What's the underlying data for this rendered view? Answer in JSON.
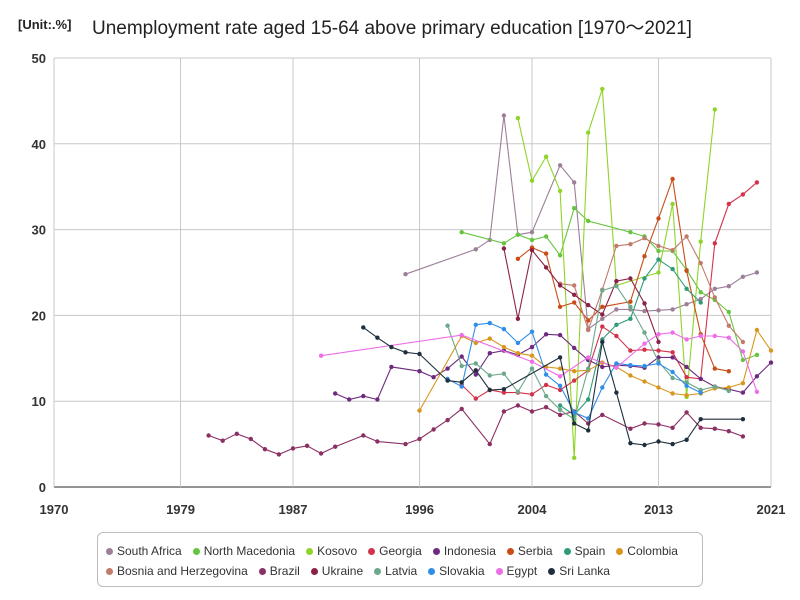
{
  "chart_data": {
    "type": "line",
    "title": "Unemployment rate aged 15-64 above primary education [1970～2021]",
    "unit_label": "[Unit:.%]",
    "xlabel": "",
    "ylabel": "",
    "xlim": [
      1970,
      2021
    ],
    "ylim": [
      0,
      50
    ],
    "x_ticks": [
      "1970",
      "1979",
      "1987",
      "1996",
      "2004",
      "2013",
      "2021"
    ],
    "y_ticks": [
      "0",
      "10",
      "20",
      "30",
      "40",
      "50"
    ],
    "grid": true,
    "legend_position": "bottom",
    "series": [
      {
        "name": "South Africa",
        "color": "#9c7f98",
        "points": [
          [
            1995,
            24.8
          ],
          [
            2000,
            27.7
          ],
          [
            2001,
            28.8
          ],
          [
            2002,
            43.3
          ],
          [
            2003,
            29.4
          ],
          [
            2004,
            29.7
          ],
          [
            2006,
            37.5
          ],
          [
            2007,
            35.5
          ],
          [
            2008,
            18.4
          ],
          [
            2009,
            19.6
          ],
          [
            2010,
            20.7
          ],
          [
            2011,
            20.7
          ],
          [
            2012,
            20.5
          ],
          [
            2013,
            20.6
          ],
          [
            2014,
            20.7
          ],
          [
            2015,
            21.3
          ],
          [
            2016,
            21.9
          ],
          [
            2017,
            23.1
          ],
          [
            2018,
            23.4
          ],
          [
            2019,
            24.5
          ],
          [
            2020,
            25.0
          ]
        ]
      },
      {
        "name": "North Macedonia",
        "color": "#66c43e",
        "points": [
          [
            1999,
            29.7
          ],
          [
            2002,
            28.4
          ],
          [
            2003,
            29.4
          ],
          [
            2004,
            28.8
          ],
          [
            2005,
            29.2
          ],
          [
            2006,
            27.0
          ],
          [
            2007,
            32.5
          ],
          [
            2008,
            31.0
          ],
          [
            2011,
            29.7
          ],
          [
            2012,
            29.2
          ],
          [
            2013,
            27.5
          ],
          [
            2014,
            27.5
          ],
          [
            2015,
            25.3
          ],
          [
            2016,
            22.7
          ],
          [
            2017,
            21.8
          ],
          [
            2018,
            20.4
          ],
          [
            2019,
            14.8
          ],
          [
            2020,
            15.4
          ]
        ]
      },
      {
        "name": "Kosovo",
        "color": "#8fd428",
        "points": [
          [
            2003,
            43.0
          ],
          [
            2004,
            35.7
          ],
          [
            2005,
            38.5
          ],
          [
            2006,
            34.5
          ],
          [
            2007,
            3.4
          ],
          [
            2008,
            41.3
          ],
          [
            2009,
            46.4
          ],
          [
            2010,
            23.5
          ],
          [
            2013,
            25.0
          ],
          [
            2014,
            33.0
          ],
          [
            2015,
            10.5
          ],
          [
            2016,
            28.6
          ],
          [
            2017,
            44.0
          ]
        ]
      },
      {
        "name": "Georgia",
        "color": "#d4324a",
        "points": [
          [
            1999,
            11.9
          ],
          [
            2000,
            10.3
          ],
          [
            2001,
            11.3
          ],
          [
            2002,
            11.0
          ],
          [
            2003,
            11.0
          ],
          [
            2004,
            10.8
          ],
          [
            2005,
            11.9
          ],
          [
            2006,
            11.3
          ],
          [
            2007,
            12.4
          ],
          [
            2008,
            13.6
          ],
          [
            2009,
            18.7
          ],
          [
            2010,
            17.6
          ],
          [
            2011,
            15.9
          ],
          [
            2012,
            16.0
          ],
          [
            2013,
            15.9
          ],
          [
            2014,
            15.7
          ],
          [
            2015,
            12.8
          ],
          [
            2016,
            12.6
          ],
          [
            2017,
            28.4
          ],
          [
            2018,
            33.0
          ],
          [
            2019,
            34.1
          ],
          [
            2020,
            35.5
          ]
        ]
      },
      {
        "name": "Indonesia",
        "color": "#6e2a7e",
        "points": [
          [
            1990,
            10.9
          ],
          [
            1991,
            10.2
          ],
          [
            1992,
            10.6
          ],
          [
            1993,
            10.2
          ],
          [
            1994,
            14.0
          ],
          [
            1996,
            13.5
          ],
          [
            1997,
            12.8
          ],
          [
            1998,
            13.8
          ],
          [
            1999,
            15.2
          ],
          [
            2000,
            13.1
          ],
          [
            2001,
            15.6
          ],
          [
            2002,
            15.9
          ],
          [
            2003,
            15.4
          ],
          [
            2004,
            16.3
          ],
          [
            2005,
            17.8
          ],
          [
            2006,
            17.7
          ],
          [
            2007,
            16.2
          ],
          [
            2008,
            14.8
          ],
          [
            2009,
            14.0
          ],
          [
            2010,
            14.2
          ],
          [
            2011,
            14.1
          ],
          [
            2012,
            13.9
          ],
          [
            2013,
            15.1
          ],
          [
            2014,
            15.1
          ],
          [
            2015,
            14.0
          ],
          [
            2016,
            12.6
          ],
          [
            2017,
            11.7
          ],
          [
            2018,
            11.4
          ],
          [
            2019,
            11.0
          ],
          [
            2020,
            12.9
          ],
          [
            2021,
            14.5
          ]
        ]
      },
      {
        "name": "Serbia",
        "color": "#c94d19",
        "points": [
          [
            2003,
            26.6
          ],
          [
            2004,
            27.9
          ],
          [
            2005,
            27.2
          ],
          [
            2006,
            21.0
          ],
          [
            2007,
            21.5
          ],
          [
            2008,
            19.4
          ],
          [
            2009,
            21.0
          ],
          [
            2011,
            21.6
          ],
          [
            2012,
            26.9
          ],
          [
            2013,
            31.3
          ],
          [
            2014,
            35.9
          ],
          [
            2015,
            25.2
          ],
          [
            2016,
            17.8
          ],
          [
            2017,
            13.8
          ],
          [
            2018,
            13.5
          ]
        ]
      },
      {
        "name": "Spain",
        "color": "#2f9b77",
        "points": [
          [
            2006,
            9.5
          ],
          [
            2007,
            8.4
          ],
          [
            2008,
            10.2
          ],
          [
            2009,
            17.2
          ],
          [
            2010,
            18.9
          ],
          [
            2011,
            19.6
          ],
          [
            2012,
            24.3
          ],
          [
            2013,
            26.5
          ],
          [
            2014,
            25.4
          ],
          [
            2015,
            23.1
          ],
          [
            2016,
            21.5
          ]
        ]
      },
      {
        "name": "Colombia",
        "color": "#d8971e",
        "points": [
          [
            1996,
            8.9
          ],
          [
            1999,
            17.6
          ],
          [
            2000,
            16.8
          ],
          [
            2001,
            17.3
          ],
          [
            2002,
            16.3
          ],
          [
            2003,
            15.6
          ],
          [
            2004,
            15.3
          ],
          [
            2005,
            14.0
          ],
          [
            2006,
            13.8
          ],
          [
            2007,
            13.5
          ],
          [
            2008,
            13.6
          ],
          [
            2009,
            14.5
          ],
          [
            2010,
            14.0
          ],
          [
            2011,
            13.0
          ],
          [
            2012,
            12.3
          ],
          [
            2013,
            11.6
          ],
          [
            2014,
            10.9
          ],
          [
            2015,
            10.7
          ],
          [
            2016,
            10.9
          ],
          [
            2017,
            11.5
          ],
          [
            2018,
            11.6
          ],
          [
            2019,
            12.1
          ],
          [
            2020,
            18.3
          ],
          [
            2021,
            15.9
          ]
        ]
      },
      {
        "name": "Bosnia and Herzegovina",
        "color": "#c27a6b",
        "points": [
          [
            2006,
            23.7
          ],
          [
            2007,
            23.5
          ],
          [
            2008,
            18.3
          ],
          [
            2009,
            23.0
          ],
          [
            2010,
            28.1
          ],
          [
            2011,
            28.3
          ],
          [
            2012,
            29.0
          ],
          [
            2013,
            28.1
          ],
          [
            2014,
            27.6
          ],
          [
            2015,
            29.2
          ],
          [
            2016,
            26.1
          ],
          [
            2017,
            22.1
          ],
          [
            2018,
            18.8
          ],
          [
            2019,
            16.9
          ]
        ]
      },
      {
        "name": "Brazil",
        "color": "#8c2f63",
        "points": [
          [
            1981,
            6.0
          ],
          [
            1982,
            5.4
          ],
          [
            1983,
            6.2
          ],
          [
            1984,
            5.6
          ],
          [
            1985,
            4.4
          ],
          [
            1986,
            3.8
          ],
          [
            1987,
            4.5
          ],
          [
            1988,
            4.8
          ],
          [
            1989,
            3.9
          ],
          [
            1990,
            4.7
          ],
          [
            1992,
            6.0
          ],
          [
            1993,
            5.3
          ],
          [
            1995,
            5.0
          ],
          [
            1996,
            5.6
          ],
          [
            1997,
            6.7
          ],
          [
            1998,
            7.8
          ],
          [
            1999,
            9.1
          ],
          [
            2001,
            5.0
          ],
          [
            2002,
            8.8
          ],
          [
            2003,
            9.5
          ],
          [
            2004,
            8.8
          ],
          [
            2005,
            9.3
          ],
          [
            2006,
            8.4
          ],
          [
            2007,
            8.8
          ],
          [
            2008,
            7.4
          ],
          [
            2009,
            8.4
          ],
          [
            2011,
            6.8
          ],
          [
            2012,
            7.4
          ],
          [
            2013,
            7.3
          ],
          [
            2014,
            6.9
          ],
          [
            2015,
            8.7
          ],
          [
            2016,
            6.9
          ],
          [
            2017,
            6.8
          ],
          [
            2018,
            6.5
          ],
          [
            2019,
            5.9
          ]
        ]
      },
      {
        "name": "Ukraine",
        "color": "#8b2146",
        "points": [
          [
            2002,
            27.8
          ],
          [
            2003,
            19.6
          ],
          [
            2004,
            27.6
          ],
          [
            2005,
            25.6
          ],
          [
            2006,
            23.5
          ],
          [
            2007,
            22.4
          ],
          [
            2008,
            21.2
          ],
          [
            2009,
            20.1
          ],
          [
            2010,
            24.0
          ],
          [
            2011,
            24.3
          ],
          [
            2012,
            21.4
          ],
          [
            2013,
            16.9
          ]
        ]
      },
      {
        "name": "Latvia",
        "color": "#6da88a",
        "points": [
          [
            1998,
            18.8
          ],
          [
            1999,
            14.1
          ],
          [
            2000,
            14.4
          ],
          [
            2001,
            13.0
          ],
          [
            2002,
            13.2
          ],
          [
            2003,
            11.1
          ],
          [
            2004,
            13.8
          ],
          [
            2005,
            10.6
          ],
          [
            2006,
            9.0
          ],
          [
            2007,
            7.9
          ],
          [
            2008,
            13.8
          ],
          [
            2009,
            22.9
          ],
          [
            2010,
            23.4
          ],
          [
            2011,
            21.0
          ],
          [
            2012,
            18.0
          ],
          [
            2013,
            14.6
          ],
          [
            2014,
            12.7
          ],
          [
            2015,
            12.2
          ],
          [
            2016,
            11.3
          ],
          [
            2017,
            11.7
          ],
          [
            2018,
            11.2
          ]
        ]
      },
      {
        "name": "Slovakia",
        "color": "#2f8ee8",
        "points": [
          [
            1998,
            12.6
          ],
          [
            1999,
            11.7
          ],
          [
            2000,
            18.9
          ],
          [
            2001,
            19.1
          ],
          [
            2002,
            18.4
          ],
          [
            2003,
            16.8
          ],
          [
            2004,
            18.1
          ],
          [
            2005,
            13.1
          ],
          [
            2006,
            11.8
          ],
          [
            2007,
            8.7
          ],
          [
            2008,
            8.0
          ],
          [
            2009,
            11.6
          ],
          [
            2010,
            14.4
          ],
          [
            2011,
            14.2
          ],
          [
            2012,
            14.1
          ],
          [
            2013,
            14.4
          ],
          [
            2014,
            13.4
          ],
          [
            2015,
            11.8
          ],
          [
            2016,
            11.0
          ]
        ]
      },
      {
        "name": "Egypt",
        "color": "#ee6ee8",
        "points": [
          [
            1989,
            15.3
          ],
          [
            1999,
            17.7
          ],
          [
            2004,
            14.6
          ],
          [
            2006,
            12.9
          ],
          [
            2008,
            15.1
          ],
          [
            2010,
            13.9
          ],
          [
            2012,
            16.7
          ],
          [
            2013,
            17.8
          ],
          [
            2014,
            18.0
          ],
          [
            2015,
            17.2
          ],
          [
            2016,
            17.6
          ],
          [
            2017,
            17.6
          ],
          [
            2018,
            17.4
          ],
          [
            2019,
            15.8
          ],
          [
            2020,
            11.1
          ]
        ]
      },
      {
        "name": "Sri Lanka",
        "color": "#1f2f3d",
        "points": [
          [
            1992,
            18.6
          ],
          [
            1993,
            17.4
          ],
          [
            1994,
            16.3
          ],
          [
            1995,
            15.7
          ],
          [
            1996,
            15.5
          ],
          [
            1998,
            12.4
          ],
          [
            1999,
            12.2
          ],
          [
            2000,
            13.6
          ],
          [
            2001,
            11.3
          ],
          [
            2002,
            11.4
          ],
          [
            2006,
            15.1
          ],
          [
            2007,
            7.4
          ],
          [
            2008,
            6.6
          ],
          [
            2009,
            16.9
          ],
          [
            2010,
            11.0
          ],
          [
            2011,
            5.1
          ],
          [
            2012,
            4.9
          ],
          [
            2013,
            5.3
          ],
          [
            2014,
            5.0
          ],
          [
            2015,
            5.5
          ],
          [
            2016,
            7.9
          ],
          [
            2019,
            7.9
          ]
        ]
      }
    ]
  }
}
